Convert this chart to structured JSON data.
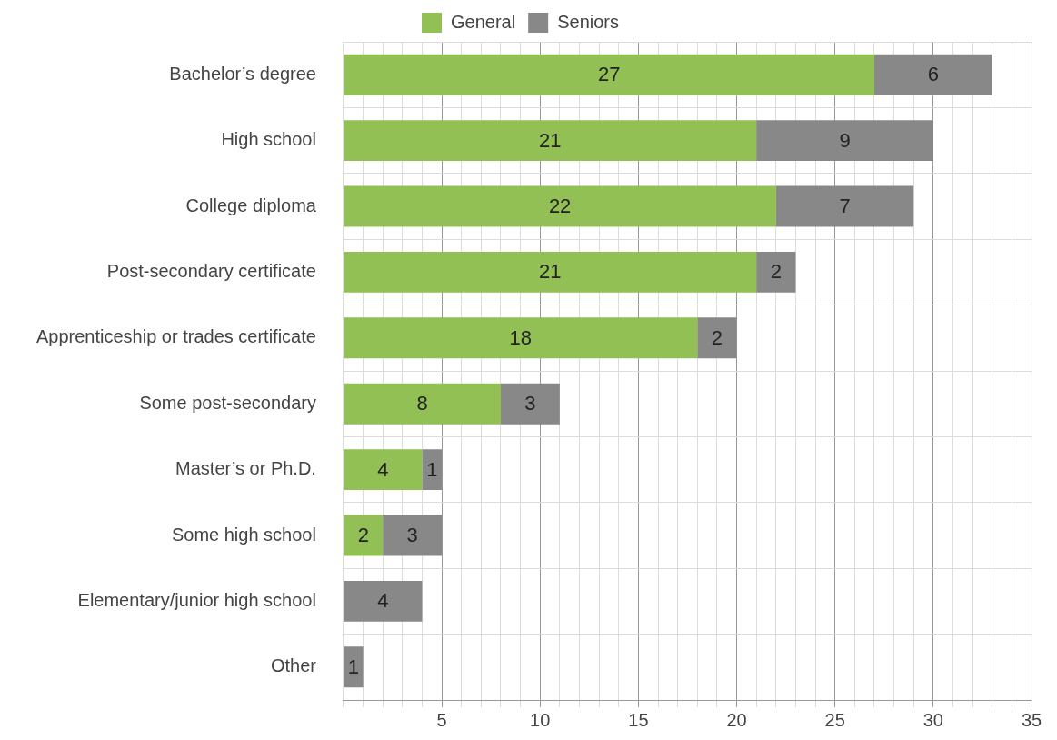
{
  "chart_data": {
    "type": "bar",
    "orientation": "horizontal",
    "stacked": true,
    "categories": [
      "Bachelor’s degree",
      "High school",
      "College diploma",
      "Post-secondary certificate",
      "Apprenticeship or trades certificate",
      "Some post-secondary",
      "Master’s or Ph.D.",
      "Some high school",
      "Elementary/junior high school",
      "Other"
    ],
    "series": [
      {
        "name": "General",
        "color": "#92c054",
        "values": [
          27,
          21,
          22,
          21,
          18,
          8,
          4,
          2,
          null,
          null
        ]
      },
      {
        "name": "Seniors",
        "color": "#888888",
        "values": [
          6,
          9,
          7,
          2,
          2,
          3,
          1,
          3,
          4,
          1
        ]
      }
    ],
    "xlim": [
      0,
      35
    ],
    "xticks": [
      {
        "value": 0,
        "label": null
      },
      {
        "value": 1,
        "label": null
      },
      {
        "value": 2,
        "label": null
      },
      {
        "value": 3,
        "label": null
      },
      {
        "value": 4,
        "label": null
      },
      5,
      {
        "value": 6,
        "label": null
      },
      {
        "value": 7,
        "label": null
      },
      {
        "value": 8,
        "label": null
      },
      {
        "value": 9,
        "label": null
      },
      10,
      {
        "value": 11,
        "label": null
      },
      {
        "value": 12,
        "label": null
      },
      {
        "value": 13,
        "label": null
      },
      {
        "value": 14,
        "label": null
      },
      15,
      {
        "value": 16,
        "label": null
      },
      {
        "value": 17,
        "label": null
      },
      {
        "value": 18,
        "label": null
      },
      {
        "value": 19,
        "label": null
      },
      20,
      {
        "value": 21,
        "label": null
      },
      {
        "value": 22,
        "label": null
      },
      {
        "value": 23,
        "label": null
      },
      {
        "value": 24,
        "label": null
      },
      25,
      {
        "value": 26,
        "label": null
      },
      {
        "value": 27,
        "label": null
      },
      {
        "value": 28,
        "label": null
      },
      {
        "value": 29,
        "label": null
      },
      30,
      {
        "value": 31,
        "label": null
      },
      {
        "value": 32,
        "label": null
      },
      {
        "value": 33,
        "label": null
      },
      {
        "value": 34,
        "label": null
      },
      35
    ],
    "grid": true,
    "legend": "top",
    "data_labels": true
  }
}
